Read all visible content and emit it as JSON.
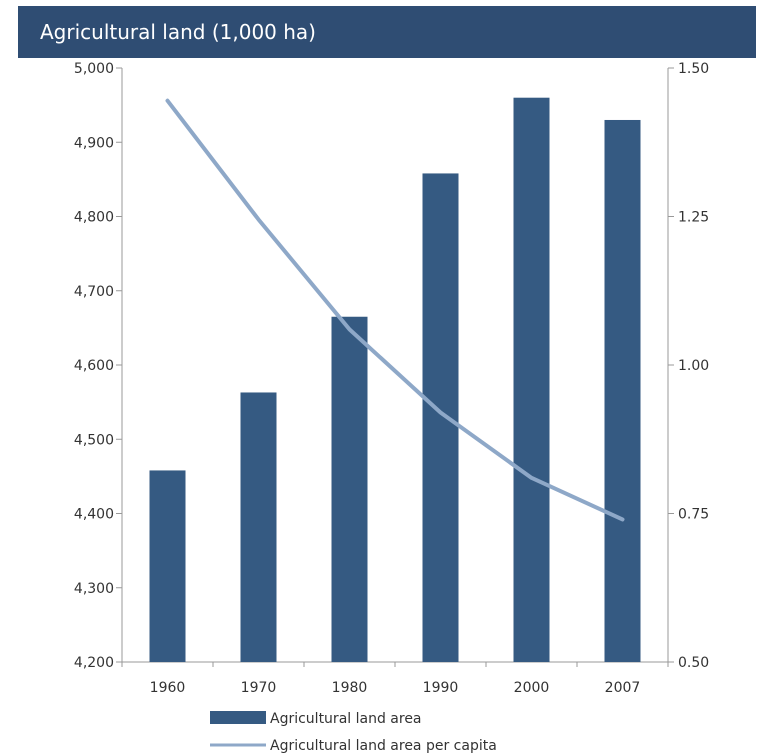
{
  "chart_data": {
    "type": "bar",
    "title": "Agricultural land (1,000 ha)",
    "categories": [
      "1960",
      "1970",
      "1980",
      "1990",
      "2000",
      "2007"
    ],
    "series": [
      {
        "name": "Agricultural land area",
        "type": "bar",
        "axis": "left",
        "values": [
          4458,
          4563,
          4665,
          4858,
          4960,
          4930
        ],
        "color": "#355a82"
      },
      {
        "name": "Agricultural land area per capita",
        "type": "line",
        "axis": "right",
        "values": [
          1.445,
          1.245,
          1.06,
          0.92,
          0.81,
          0.74
        ],
        "color": "#8ea8c8"
      }
    ],
    "y_left": {
      "range": [
        4200,
        5000
      ],
      "ticks": [
        "4,200",
        "4,300",
        "4,400",
        "4,500",
        "4,600",
        "4,700",
        "4,800",
        "4,900",
        "5,000"
      ]
    },
    "y_right": {
      "range": [
        0.5,
        1.5
      ],
      "ticks": [
        "0.50",
        "0.75",
        "1.00",
        "1.25",
        "1.50"
      ]
    },
    "grid": false,
    "legend_position": "bottom"
  }
}
